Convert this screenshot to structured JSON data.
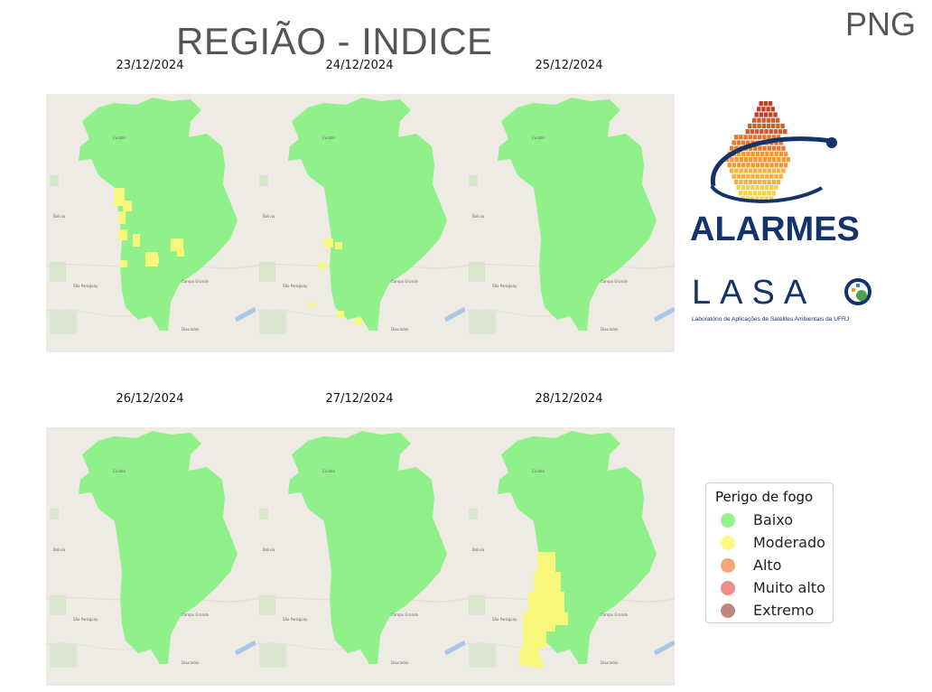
{
  "header": {
    "title": "REGIÃO - INDICE",
    "format": "PNG"
  },
  "maps": [
    {
      "date": "23/12/2024",
      "hotspots": "moderate-west"
    },
    {
      "date": "24/12/2024",
      "hotspots": "few-moderate"
    },
    {
      "date": "25/12/2024",
      "hotspots": "none"
    },
    {
      "date": "26/12/2024",
      "hotspots": "none"
    },
    {
      "date": "27/12/2024",
      "hotspots": "none"
    },
    {
      "date": "28/12/2024",
      "hotspots": "moderate-southwest"
    }
  ],
  "map_labels": {
    "city_center": "Cuiabá",
    "city_south": "Campo Grande",
    "city_west": "Bolivia",
    "city_southwest": "São Paraguay",
    "city_bottom": "Dourados"
  },
  "legend": {
    "title": "Perigo de fogo",
    "items": [
      {
        "label": "Baixo",
        "color": "#8ff58a"
      },
      {
        "label": "Moderado",
        "color": "#fbfb82"
      },
      {
        "label": "Alto",
        "color": "#f2a87a"
      },
      {
        "label": "Muito alto",
        "color": "#ee8c86"
      },
      {
        "label": "Extremo",
        "color": "#bf8580"
      }
    ]
  },
  "logos": {
    "alarmes": "ALARMES",
    "lasa": "LASA",
    "lasa_subtitle": "Laboratório de Aplicações de Satélites Ambientais da UFRJ"
  },
  "colors": {
    "basemap": "#eeeae4",
    "region_low": "#90f08a",
    "region_moderate": "#f7f77c",
    "title_gray": "#555555",
    "alarmes_blue": "#14336b"
  }
}
